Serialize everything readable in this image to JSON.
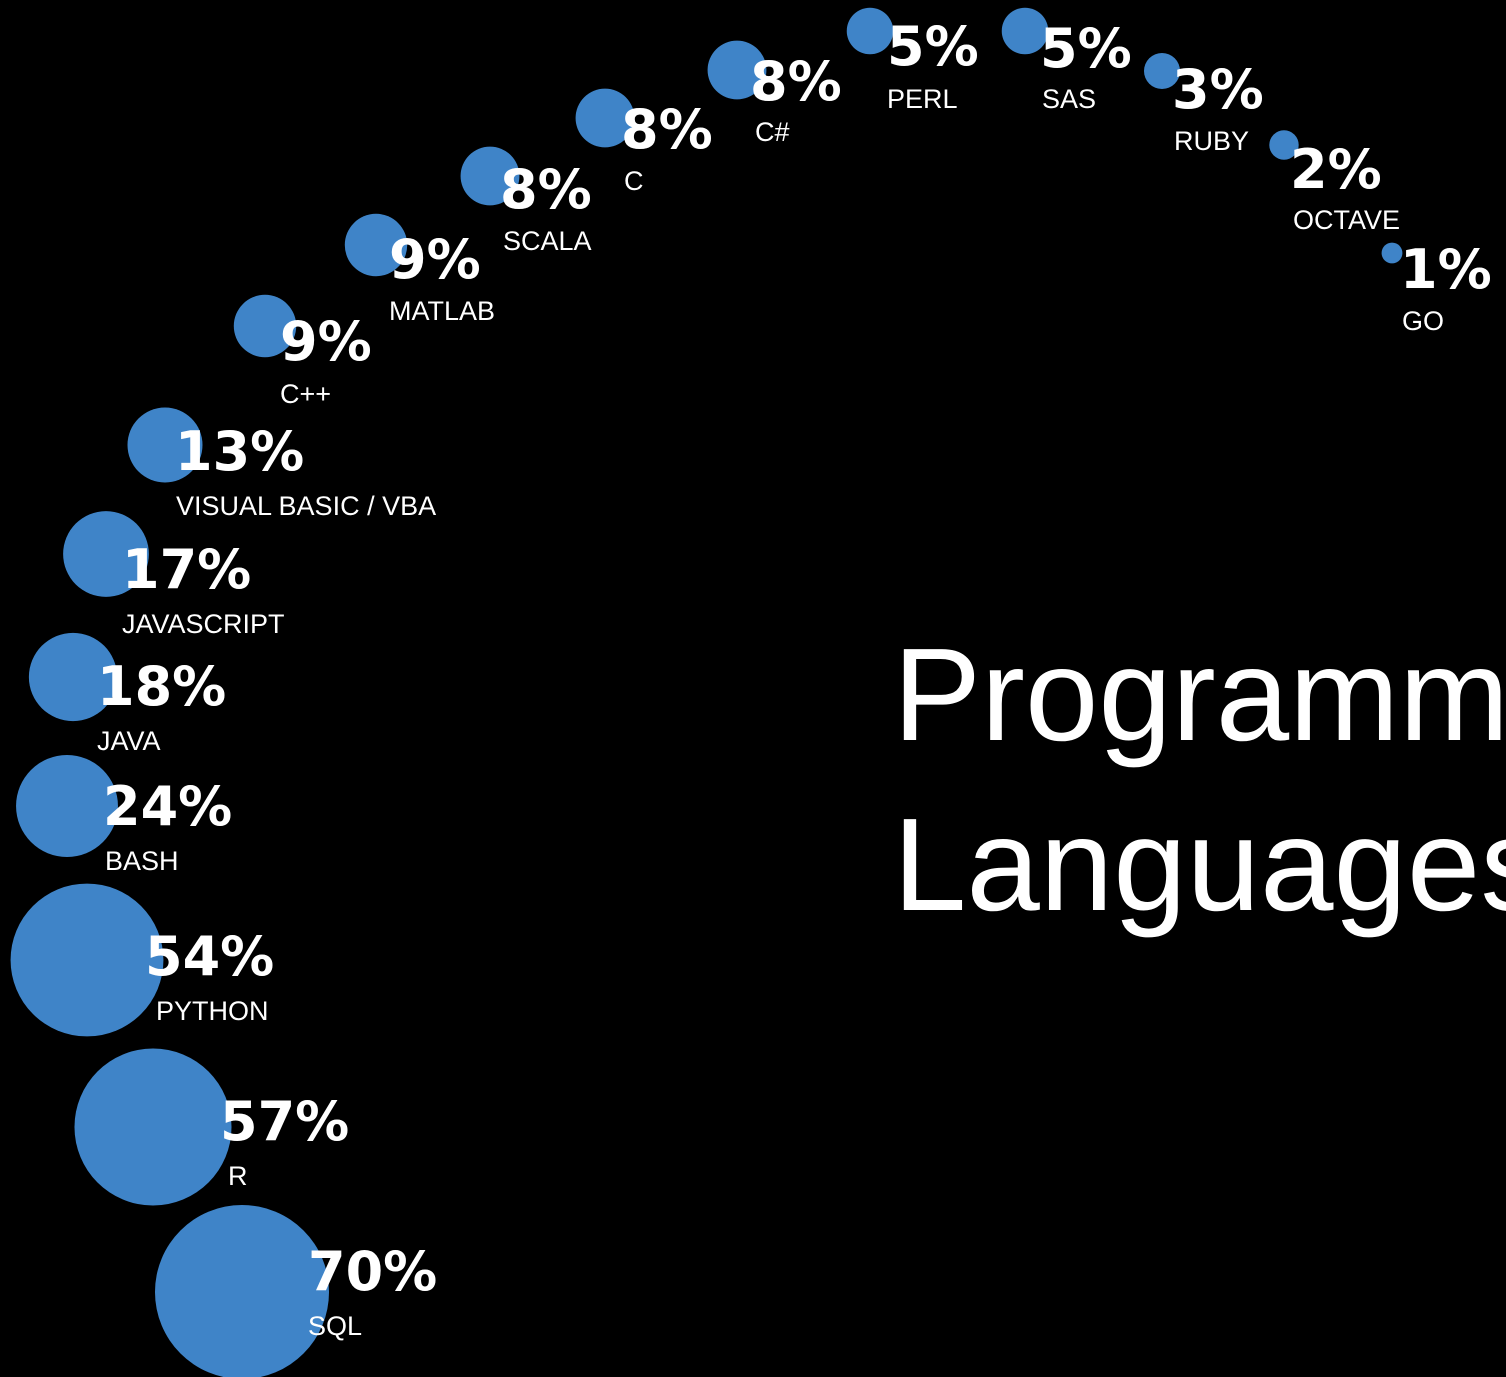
{
  "chart_data": {
    "type": "bubble",
    "title": [
      "Programming",
      "Languages"
    ],
    "color": "#3f84c8",
    "categories": [
      "SQL",
      "R",
      "PYTHON",
      "BASH",
      "JAVA",
      "JAVASCRIPT",
      "VISUAL BASIC / VBA",
      "C++",
      "MATLAB",
      "SCALA",
      "C",
      "C#",
      "PERL",
      "SAS",
      "RUBY",
      "OCTAVE",
      "GO"
    ],
    "values": [
      70,
      57,
      54,
      24,
      18,
      17,
      13,
      9,
      9,
      8,
      8,
      8,
      5,
      5,
      3,
      2,
      1
    ],
    "value_labels": [
      "70%",
      "57%",
      "54%",
      "24%",
      "18%",
      "17%",
      "13%",
      "9%",
      "9%",
      "8%",
      "8%",
      "8%",
      "5%",
      "5%",
      "3%",
      "2%",
      "1%"
    ]
  }
}
